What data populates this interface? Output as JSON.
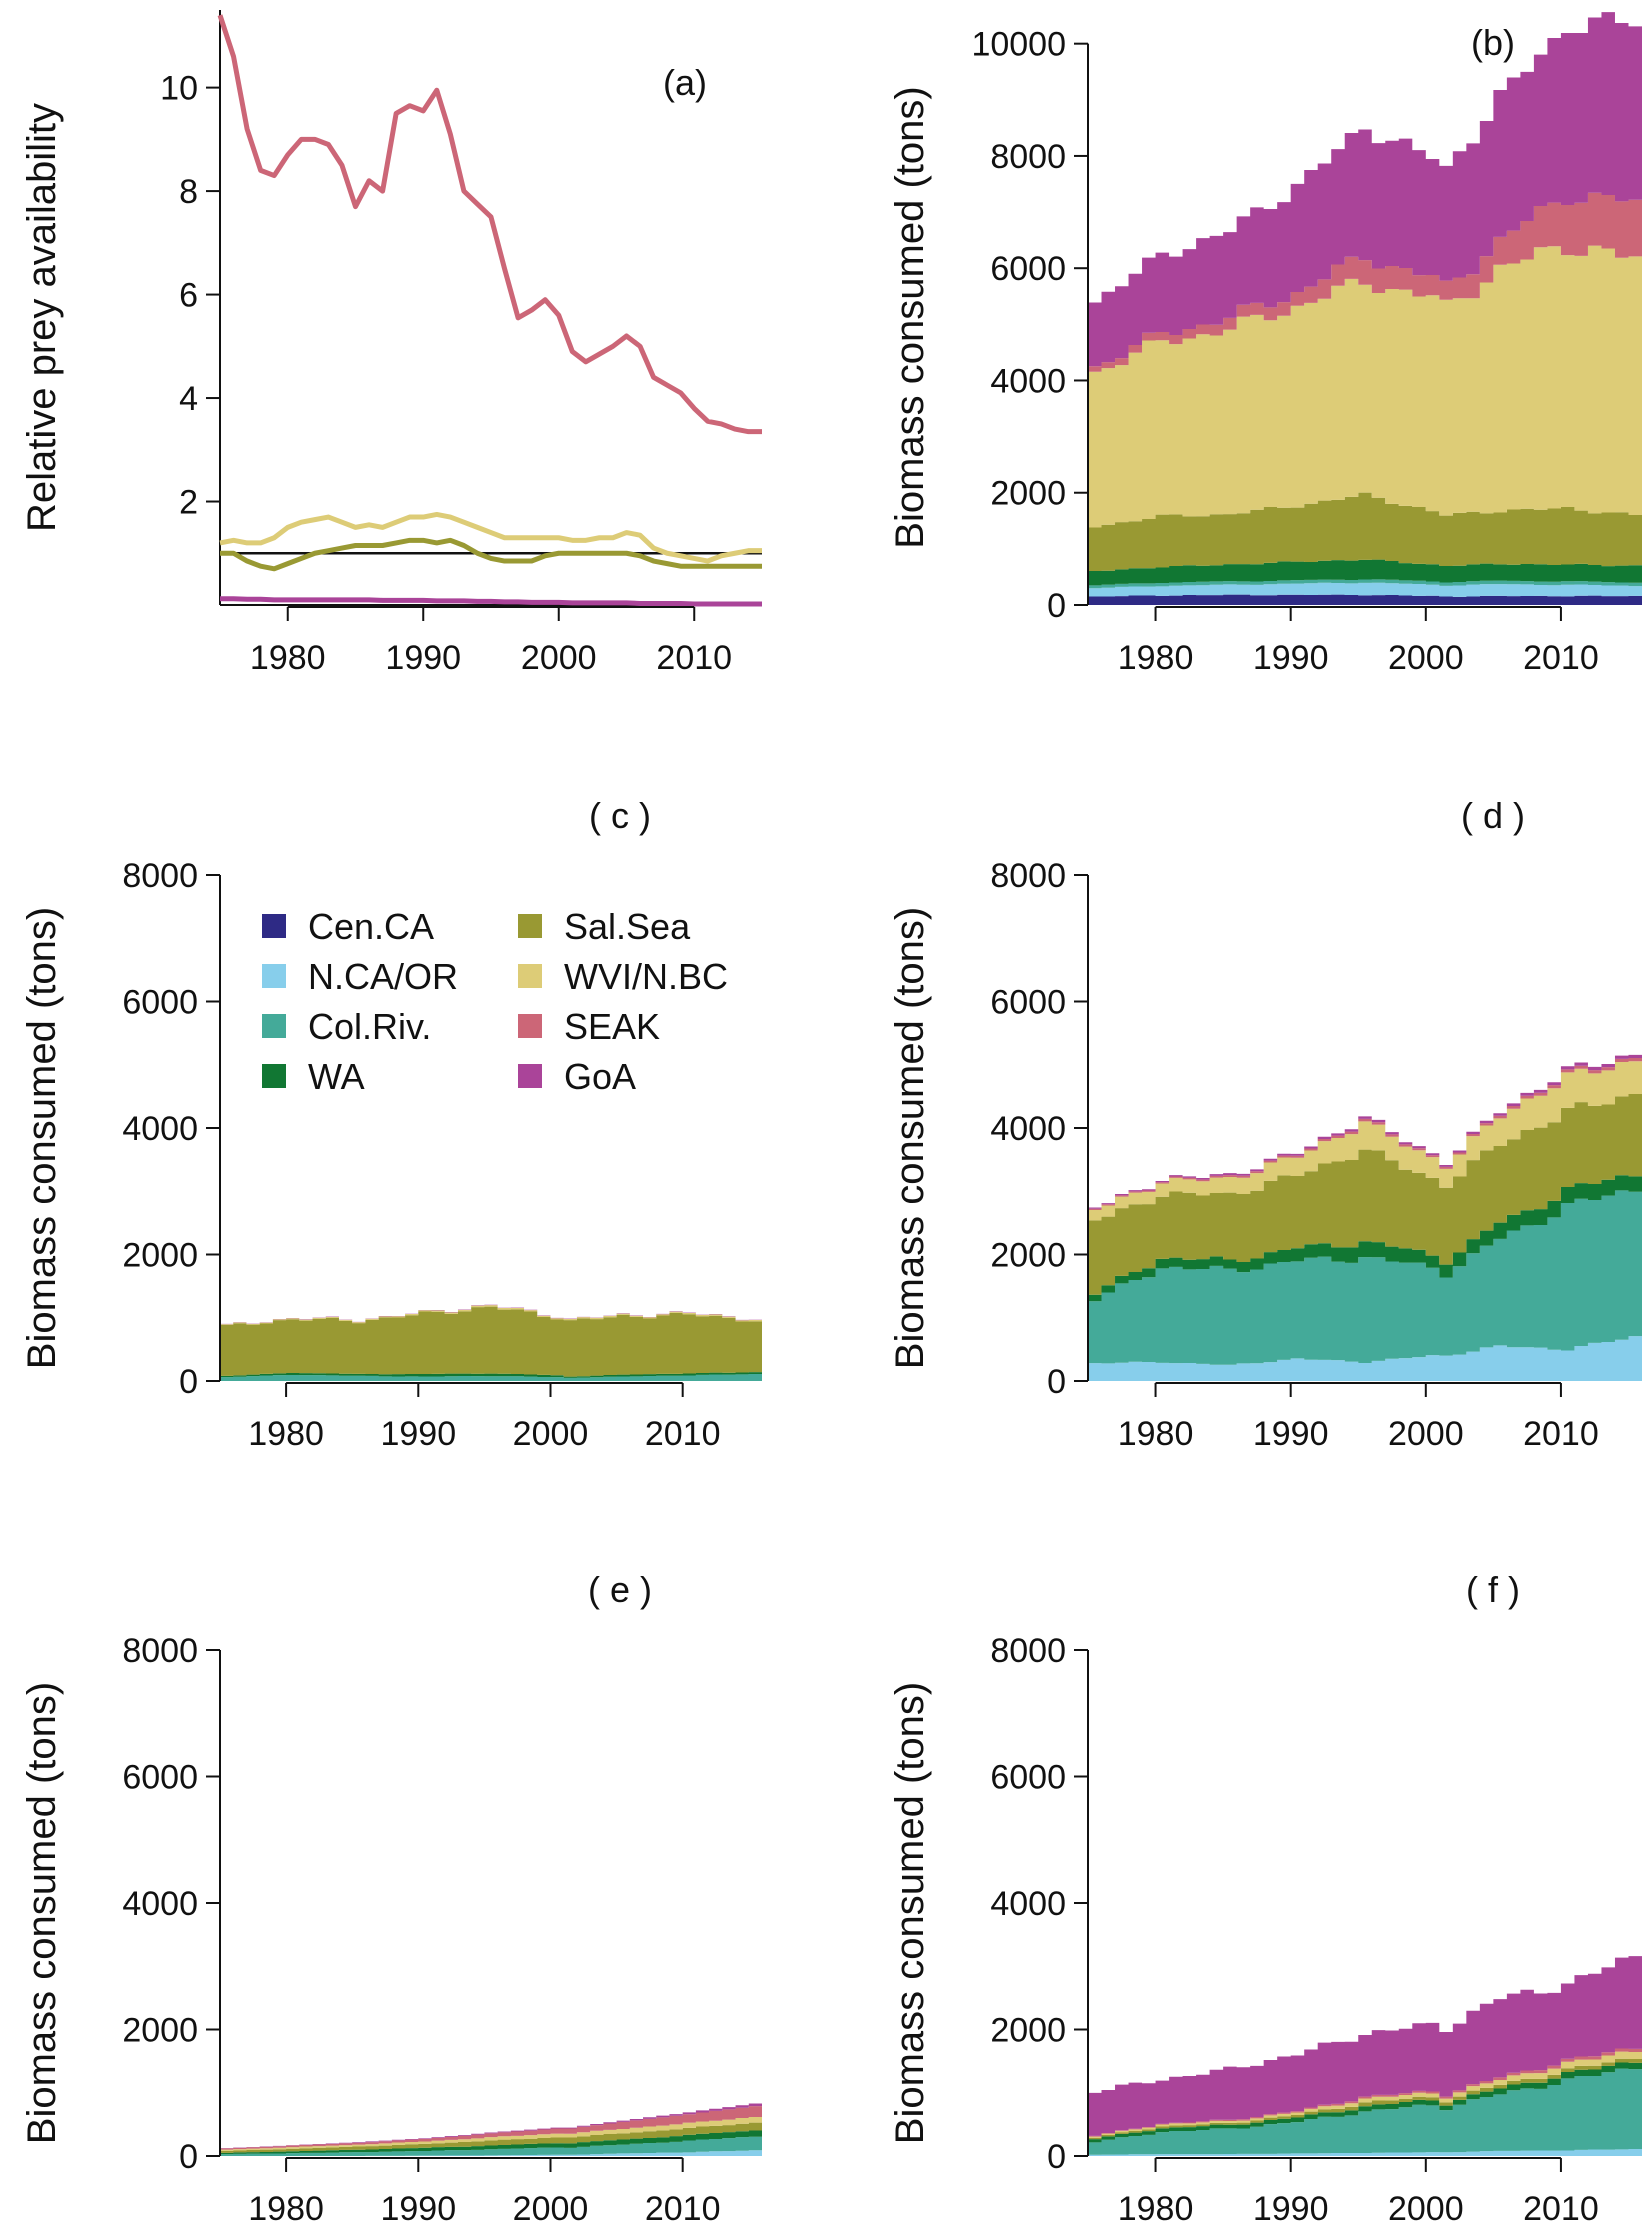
{
  "years_range": [
    1975,
    2015
  ],
  "colors": {
    "Cen.CA": "#2e2a85",
    "N.CA/OR": "#87ceeb",
    "Col.Riv.": "#44aa99",
    "WA": "#117733",
    "Sal.Sea": "#999933",
    "WVI/N.BC": "#ddcc77",
    "SEAK": "#cc6677",
    "GoA": "#aa4499",
    "availability_line": "#cc6677",
    "availability_line2": "#ddcc77",
    "availability_line3": "#999933",
    "availability_line4": "#aa4499"
  },
  "legend": {
    "items": [
      {
        "key": "Cen.CA",
        "label": "Cen.CA"
      },
      {
        "key": "N.CA/OR",
        "label": "N.CA/OR"
      },
      {
        "key": "Col.Riv.",
        "label": "Col.Riv."
      },
      {
        "key": "WA",
        "label": "WA"
      },
      {
        "key": "Sal.Sea",
        "label": "Sal.Sea"
      },
      {
        "key": "WVI/N.BC",
        "label": "WVI/N.BC"
      },
      {
        "key": "SEAK",
        "label": "SEAK"
      },
      {
        "key": "GoA",
        "label": "GoA"
      }
    ]
  },
  "chart_data": [
    {
      "id": "a",
      "type": "line",
      "panel_label": "(a)",
      "ylabel": "Relative prey availability",
      "xlabel": "",
      "xlim": [
        1975,
        2015
      ],
      "ylim": [
        0,
        11.5
      ],
      "xticks": [
        "1980",
        "1990",
        "2000",
        "2010"
      ],
      "yticks": [
        "2",
        "4",
        "6",
        "8",
        "10"
      ],
      "reference_line": 1,
      "x": [
        1975,
        1976,
        1977,
        1978,
        1979,
        1980,
        1981,
        1982,
        1983,
        1984,
        1985,
        1986,
        1987,
        1988,
        1989,
        1990,
        1991,
        1992,
        1993,
        1994,
        1995,
        1996,
        1997,
        1998,
        1999,
        2000,
        2001,
        2002,
        2003,
        2004,
        2005,
        2006,
        2007,
        2008,
        2009,
        2010,
        2011,
        2012,
        2013,
        2014,
        2015
      ],
      "series": [
        {
          "name": "SEAK",
          "color_key": "SEAK",
          "values": [
            11.4,
            10.6,
            9.2,
            8.4,
            8.3,
            8.7,
            9.0,
            9.0,
            8.9,
            8.5,
            7.7,
            8.2,
            8.0,
            9.5,
            9.65,
            9.55,
            9.95,
            9.1,
            8.0,
            7.75,
            7.5,
            6.5,
            5.55,
            5.7,
            5.9,
            5.6,
            4.9,
            4.7,
            4.85,
            5.0,
            5.2,
            5.0,
            4.4,
            4.25,
            4.1,
            3.8,
            3.55,
            3.5,
            3.4,
            3.35,
            3.35
          ]
        },
        {
          "name": "WVI/N.BC",
          "color_key": "WVI/N.BC",
          "values": [
            1.2,
            1.25,
            1.2,
            1.2,
            1.3,
            1.5,
            1.6,
            1.65,
            1.7,
            1.6,
            1.5,
            1.55,
            1.5,
            1.6,
            1.7,
            1.7,
            1.75,
            1.7,
            1.6,
            1.5,
            1.4,
            1.3,
            1.3,
            1.3,
            1.3,
            1.3,
            1.25,
            1.25,
            1.3,
            1.3,
            1.4,
            1.35,
            1.1,
            1.0,
            0.95,
            0.9,
            0.85,
            0.95,
            1.0,
            1.05,
            1.05
          ]
        },
        {
          "name": "Sal.Sea",
          "color_key": "Sal.Sea",
          "values": [
            1.0,
            1.0,
            0.85,
            0.75,
            0.7,
            0.8,
            0.9,
            1.0,
            1.05,
            1.1,
            1.15,
            1.15,
            1.15,
            1.2,
            1.25,
            1.25,
            1.2,
            1.25,
            1.15,
            1.0,
            0.9,
            0.85,
            0.85,
            0.85,
            0.95,
            1.0,
            1.0,
            1.0,
            1.0,
            1.0,
            1.0,
            0.95,
            0.85,
            0.8,
            0.75,
            0.75,
            0.75,
            0.75,
            0.75,
            0.75,
            0.75
          ]
        },
        {
          "name": "GoA",
          "color_key": "GoA",
          "values": [
            0.12,
            0.12,
            0.11,
            0.11,
            0.1,
            0.1,
            0.1,
            0.1,
            0.1,
            0.1,
            0.1,
            0.1,
            0.09,
            0.09,
            0.09,
            0.09,
            0.08,
            0.08,
            0.08,
            0.07,
            0.07,
            0.06,
            0.06,
            0.05,
            0.05,
            0.05,
            0.04,
            0.04,
            0.04,
            0.04,
            0.04,
            0.03,
            0.03,
            0.03,
            0.03,
            0.02,
            0.02,
            0.02,
            0.02,
            0.02,
            0.02
          ]
        }
      ]
    },
    {
      "id": "b",
      "type": "area",
      "panel_label": "(b)",
      "ylabel": "Biomass consumed (tons)",
      "xlabel": "",
      "xlim": [
        1975,
        2016
      ],
      "ylim": [
        0,
        10600
      ],
      "xticks": [
        "1980",
        "1990",
        "2000",
        "2010"
      ],
      "yticks": [
        "0",
        "2000",
        "4000",
        "6000",
        "8000",
        "10000"
      ],
      "x_knots": [
        1975,
        1980,
        1985,
        1990,
        1995,
        2000,
        2001,
        2005,
        2010,
        2015
      ],
      "series": [
        {
          "name": "Cen.CA",
          "color_key": "Cen.CA",
          "values": [
            150,
            170,
            180,
            180,
            180,
            160,
            150,
            160,
            160,
            160
          ]
        },
        {
          "name": "N.CA/OR",
          "color_key": "N.CA/OR",
          "values": [
            150,
            170,
            180,
            200,
            220,
            200,
            200,
            210,
            200,
            180
          ]
        },
        {
          "name": "Col.Riv.",
          "color_key": "Col.Riv.",
          "values": [
            50,
            60,
            60,
            60,
            60,
            60,
            60,
            60,
            60,
            60
          ]
        },
        {
          "name": "WA",
          "color_key": "WA",
          "values": [
            250,
            280,
            300,
            330,
            350,
            300,
            290,
            300,
            300,
            300
          ]
        },
        {
          "name": "Sal.Sea",
          "color_key": "Sal.Sea",
          "values": [
            800,
            900,
            900,
            1000,
            1150,
            950,
            900,
            950,
            1000,
            900
          ]
        },
        {
          "name": "WVI/N.BC",
          "color_key": "WVI/N.BC",
          "values": [
            2750,
            3100,
            3300,
            3550,
            3800,
            3800,
            3700,
            4300,
            4700,
            4550
          ]
        },
        {
          "name": "SEAK",
          "color_key": "SEAK",
          "values": [
            100,
            150,
            200,
            250,
            450,
            350,
            350,
            500,
            900,
            1000
          ]
        },
        {
          "name": "GoA",
          "color_key": "GoA",
          "values": [
            1150,
            1400,
            1550,
            1900,
            2300,
            2150,
            2100,
            2550,
            3000,
            3250
          ]
        }
      ]
    },
    {
      "id": "c",
      "type": "area",
      "panel_label": "( c )",
      "ylabel": "Biomass consumed (tons)",
      "xlabel": "",
      "xlim": [
        1975,
        2016
      ],
      "ylim": [
        0,
        8000
      ],
      "xticks": [
        "1980",
        "1990",
        "2000",
        "2010"
      ],
      "yticks": [
        "0",
        "2000",
        "4000",
        "6000",
        "8000"
      ],
      "x_knots": [
        1975,
        1980,
        1985,
        1990,
        1995,
        2000,
        2001,
        2005,
        2010,
        2015
      ],
      "series": [
        {
          "name": "Col.Riv.",
          "color_key": "Col.Riv.",
          "values": [
            60,
            100,
            80,
            70,
            80,
            60,
            50,
            70,
            90,
            110
          ]
        },
        {
          "name": "WA",
          "color_key": "WA",
          "values": [
            20,
            30,
            30,
            40,
            40,
            30,
            20,
            30,
            30,
            30
          ]
        },
        {
          "name": "Sal.Sea",
          "color_key": "Sal.Sea",
          "values": [
            780,
            850,
            840,
            950,
            1050,
            920,
            880,
            920,
            930,
            820
          ]
        },
        {
          "name": "WVI/N.BC",
          "color_key": "WVI/N.BC",
          "values": [
            10,
            15,
            15,
            20,
            25,
            20,
            20,
            20,
            20,
            20
          ]
        },
        {
          "name": "GoA",
          "color_key": "GoA",
          "values": [
            5,
            5,
            5,
            5,
            5,
            5,
            5,
            5,
            5,
            5
          ]
        }
      ]
    },
    {
      "id": "d",
      "type": "area",
      "panel_label": "( d )",
      "ylabel": "Biomass consumed (tons)",
      "xlabel": "",
      "xlim": [
        1975,
        2016
      ],
      "ylim": [
        0,
        8000
      ],
      "xticks": [
        "1980",
        "1990",
        "2000",
        "2010"
      ],
      "yticks": [
        "0",
        "2000",
        "4000",
        "6000",
        "8000"
      ],
      "x_knots": [
        1975,
        1980,
        1985,
        1990,
        1995,
        2000,
        2001,
        2005,
        2010,
        2015
      ],
      "series": [
        {
          "name": "N.CA/OR",
          "color_key": "N.CA/OR",
          "values": [
            280,
            300,
            250,
            350,
            300,
            400,
            400,
            550,
            500,
            700
          ]
        },
        {
          "name": "Col.Riv.",
          "color_key": "Col.Riv.",
          "values": [
            1000,
            1500,
            1500,
            1550,
            1650,
            1400,
            1300,
            1700,
            2250,
            2350
          ]
        },
        {
          "name": "WA",
          "color_key": "WA",
          "values": [
            100,
            150,
            150,
            200,
            250,
            200,
            200,
            250,
            250,
            250
          ]
        },
        {
          "name": "Sal.Sea",
          "color_key": "Sal.Sea",
          "values": [
            1150,
            1000,
            1050,
            1150,
            1450,
            1200,
            1200,
            1250,
            1250,
            1250
          ]
        },
        {
          "name": "WVI/N.BC",
          "color_key": "WVI/N.BC",
          "values": [
            170,
            200,
            250,
            300,
            430,
            330,
            300,
            450,
            550,
            520
          ]
        },
        {
          "name": "SEAK",
          "color_key": "SEAK",
          "values": [
            20,
            20,
            30,
            30,
            40,
            30,
            30,
            40,
            50,
            50
          ]
        },
        {
          "name": "GoA",
          "color_key": "GoA",
          "values": [
            20,
            20,
            30,
            30,
            40,
            30,
            30,
            40,
            50,
            50
          ]
        }
      ]
    },
    {
      "id": "e",
      "type": "area",
      "panel_label": "( e )",
      "ylabel": "Biomass consumed (tons)",
      "xlabel": "",
      "xlim": [
        1975,
        2016
      ],
      "ylim": [
        0,
        8000
      ],
      "xticks": [
        "1980",
        "1990",
        "2000",
        "2010"
      ],
      "yticks": [
        "0",
        "2000",
        "4000",
        "6000",
        "8000"
      ],
      "x_knots": [
        1975,
        1980,
        1985,
        1990,
        1995,
        2000,
        2001,
        2005,
        2010,
        2015
      ],
      "series": [
        {
          "name": "N.CA/OR",
          "color_key": "N.CA/OR",
          "values": [
            0,
            0,
            0,
            5,
            10,
            20,
            20,
            40,
            60,
            90
          ]
        },
        {
          "name": "Col.Riv.",
          "color_key": "Col.Riv.",
          "values": [
            30,
            45,
            60,
            75,
            95,
            115,
            115,
            140,
            180,
            220
          ]
        },
        {
          "name": "WA",
          "color_key": "WA",
          "values": [
            20,
            30,
            40,
            50,
            60,
            70,
            70,
            80,
            90,
            100
          ]
        },
        {
          "name": "Sal.Sea",
          "color_key": "Sal.Sea",
          "values": [
            30,
            40,
            50,
            60,
            80,
            90,
            90,
            100,
            110,
            120
          ]
        },
        {
          "name": "WVI/N.BC",
          "color_key": "WVI/N.BC",
          "values": [
            20,
            25,
            30,
            40,
            50,
            60,
            60,
            70,
            80,
            90
          ]
        },
        {
          "name": "SEAK",
          "color_key": "SEAK",
          "values": [
            20,
            25,
            30,
            40,
            60,
            80,
            80,
            110,
            140,
            170
          ]
        },
        {
          "name": "GoA",
          "color_key": "GoA",
          "values": [
            5,
            5,
            10,
            10,
            15,
            15,
            15,
            20,
            30,
            40
          ]
        }
      ]
    },
    {
      "id": "f",
      "type": "area",
      "panel_label": "( f )",
      "ylabel": "Biomass consumed (tons)",
      "xlabel": "",
      "xlim": [
        1975,
        2016
      ],
      "ylim": [
        0,
        8000
      ],
      "xticks": [
        "1980",
        "1990",
        "2000",
        "2010"
      ],
      "yticks": [
        "0",
        "2000",
        "4000",
        "6000",
        "8000"
      ],
      "x_knots": [
        1975,
        1980,
        1985,
        1990,
        1995,
        2000,
        2001,
        2005,
        2010,
        2015
      ],
      "series": [
        {
          "name": "N.CA/OR",
          "color_key": "N.CA/OR",
          "values": [
            20,
            30,
            30,
            40,
            50,
            60,
            60,
            80,
            90,
            110
          ]
        },
        {
          "name": "Col.Riv.",
          "color_key": "Col.Riv.",
          "values": [
            200,
            350,
            400,
            500,
            650,
            750,
            700,
            900,
            1100,
            1300
          ]
        },
        {
          "name": "WA",
          "color_key": "WA",
          "values": [
            50,
            60,
            60,
            70,
            80,
            80,
            70,
            90,
            100,
            100
          ]
        },
        {
          "name": "Sal.Sea",
          "color_key": "Sal.Sea",
          "values": [
            20,
            30,
            30,
            40,
            60,
            50,
            50,
            60,
            60,
            60
          ]
        },
        {
          "name": "WVI/N.BC",
          "color_key": "WVI/N.BC",
          "values": [
            20,
            30,
            30,
            40,
            60,
            60,
            60,
            80,
            100,
            110
          ]
        },
        {
          "name": "SEAK",
          "color_key": "SEAK",
          "values": [
            10,
            10,
            20,
            20,
            30,
            30,
            30,
            40,
            50,
            50
          ]
        },
        {
          "name": "GoA",
          "color_key": "GoA",
          "values": [
            700,
            700,
            800,
            900,
            1000,
            1050,
            1050,
            1250,
            1200,
            1450
          ]
        }
      ]
    }
  ]
}
